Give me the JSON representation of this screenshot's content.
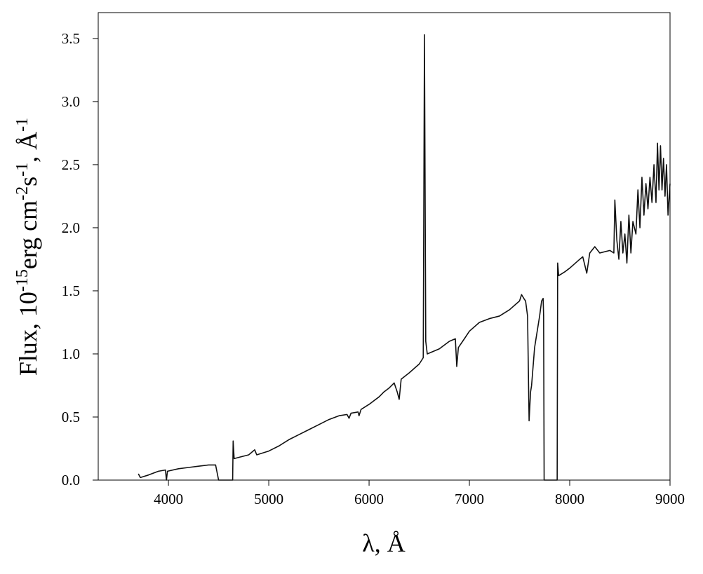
{
  "chart_data": {
    "type": "line",
    "xlabel": "λ, Å",
    "ylabel": [
      {
        "text": "Flux, 10"
      },
      {
        "text": "-15",
        "sup": true
      },
      {
        "text": "erg cm"
      },
      {
        "text": "-2",
        "sup": true
      },
      {
        "text": "s"
      },
      {
        "text": "-1",
        "sup": true
      },
      {
        "text": ", Å"
      },
      {
        "text": "-1",
        "sup": true
      }
    ],
    "color": "#111111",
    "xlim": [
      3300,
      9000
    ],
    "ylim": [
      0,
      3.705
    ],
    "xticks": [
      4000,
      5000,
      6000,
      7000,
      8000,
      9000
    ],
    "yticks": [
      {
        "value": 0,
        "label": "0.0"
      },
      {
        "value": 0.5,
        "label": "0.5"
      },
      {
        "value": 1,
        "label": "1.0"
      },
      {
        "value": 1.5,
        "label": "1.5"
      },
      {
        "value": 2,
        "label": "2.0"
      },
      {
        "value": 2.5,
        "label": "2.5"
      },
      {
        "value": 3,
        "label": "3.0"
      },
      {
        "value": 3.5,
        "label": "3.5"
      }
    ],
    "x": [
      3700,
      3720,
      3800,
      3900,
      3970,
      3980,
      3990,
      4100,
      4200,
      4300,
      4400,
      4470,
      4480,
      4500,
      4640,
      4645,
      4655,
      4700,
      4800,
      4860,
      4880,
      5000,
      5100,
      5200,
      5300,
      5400,
      5500,
      5600,
      5700,
      5780,
      5800,
      5820,
      5890,
      5900,
      5920,
      6000,
      6100,
      6150,
      6200,
      6250,
      6280,
      6300,
      6320,
      6400,
      6500,
      6540,
      6552,
      6565,
      6580,
      6700,
      6800,
      6860,
      6874,
      6890,
      6950,
      7000,
      7100,
      7200,
      7300,
      7400,
      7500,
      7520,
      7550,
      7560,
      7580,
      7595,
      7610,
      7620,
      7650,
      7700,
      7720,
      7735,
      7740,
      7745,
      7875,
      7880,
      7890,
      7950,
      8000,
      8100,
      8130,
      8170,
      8200,
      8250,
      8300,
      8400,
      8440,
      8450,
      8470,
      8490,
      8510,
      8530,
      8550,
      8570,
      8590,
      8610,
      8630,
      8660,
      8680,
      8700,
      8720,
      8740,
      8760,
      8780,
      8800,
      8820,
      8840,
      8860,
      8875,
      8890,
      8905,
      8920,
      8935,
      8950,
      8965,
      8980,
      9000
    ],
    "values": [
      0.05,
      0.02,
      0.04,
      0.07,
      0.08,
      0.0,
      0.07,
      0.09,
      0.1,
      0.11,
      0.12,
      0.12,
      0.08,
      0.0,
      0.0,
      0.31,
      0.17,
      0.18,
      0.2,
      0.24,
      0.2,
      0.23,
      0.27,
      0.32,
      0.36,
      0.4,
      0.44,
      0.48,
      0.51,
      0.52,
      0.49,
      0.53,
      0.54,
      0.51,
      0.56,
      0.6,
      0.66,
      0.7,
      0.73,
      0.77,
      0.7,
      0.64,
      0.8,
      0.85,
      0.92,
      0.97,
      3.53,
      1.1,
      1.0,
      1.04,
      1.1,
      1.12,
      0.9,
      1.05,
      1.12,
      1.18,
      1.25,
      1.28,
      1.3,
      1.35,
      1.42,
      1.47,
      1.43,
      1.42,
      1.3,
      0.47,
      0.7,
      0.75,
      1.05,
      1.3,
      1.42,
      1.44,
      1.3,
      0.0,
      0.0,
      1.72,
      1.62,
      1.65,
      1.68,
      1.75,
      1.77,
      1.64,
      1.8,
      1.85,
      1.8,
      1.82,
      1.8,
      2.22,
      1.9,
      1.75,
      2.05,
      1.8,
      1.95,
      1.72,
      2.1,
      1.8,
      2.05,
      1.95,
      2.3,
      2.0,
      2.4,
      2.1,
      2.35,
      2.15,
      2.4,
      2.2,
      2.5,
      2.2,
      2.67,
      2.3,
      2.65,
      2.3,
      2.55,
      2.25,
      2.5,
      2.1,
      2.35
    ]
  }
}
